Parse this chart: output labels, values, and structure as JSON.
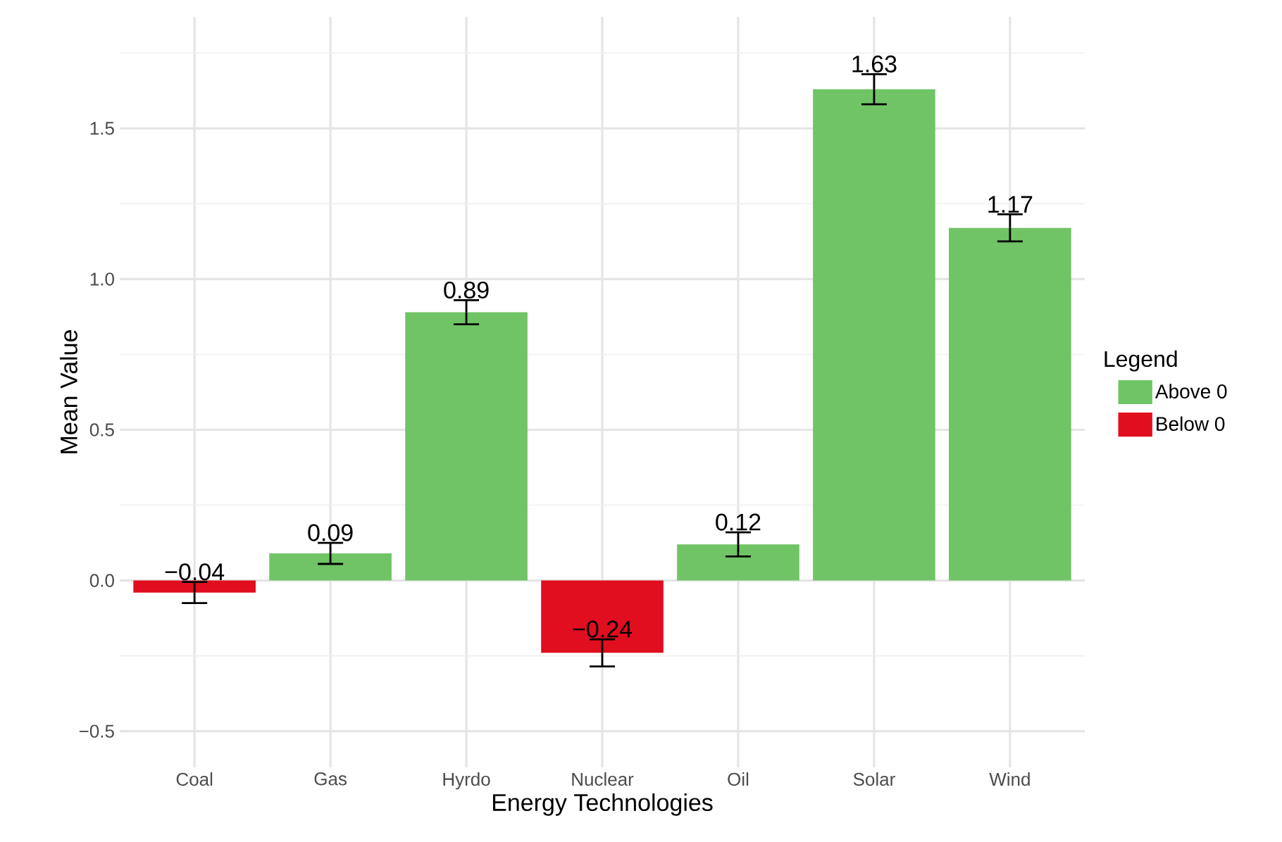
{
  "chart_data": {
    "type": "bar",
    "xlabel": "Energy Technologies",
    "ylabel": "Mean Value",
    "legend_title": "Legend",
    "categories": [
      "Coal",
      "Gas",
      "Hyrdo",
      "Nuclear",
      "Oil",
      "Solar",
      "Wind"
    ],
    "series": [
      {
        "name": "Above 0",
        "color": "#71c466",
        "values": [
          null,
          0.09,
          0.89,
          null,
          0.12,
          1.63,
          1.17
        ],
        "errors": [
          null,
          0.035,
          0.04,
          null,
          0.04,
          0.05,
          0.045
        ],
        "value_labels": [
          null,
          "0.09",
          "0.89",
          null,
          "0.12",
          "1.63",
          "1.17"
        ]
      },
      {
        "name": "Below 0",
        "color": "#e00e1f",
        "values": [
          -0.04,
          null,
          null,
          -0.24,
          null,
          null,
          null
        ],
        "errors": [
          0.035,
          null,
          null,
          0.045,
          null,
          null,
          null
        ],
        "value_labels": [
          "−0.04",
          null,
          null,
          "−0.24",
          null,
          null,
          null
        ]
      }
    ],
    "ylim": [
      -0.62,
      1.87
    ],
    "yticks": [
      {
        "value": -0.5,
        "label": "−0.5"
      },
      {
        "value": -0.25,
        "label": null
      },
      {
        "value": 0,
        "label": "0.0"
      },
      {
        "value": 0.25,
        "label": null
      },
      0.5,
      {
        "value": 0.75,
        "label": null
      },
      {
        "value": 1,
        "label": "1.0"
      },
      {
        "value": 1.25,
        "label": null
      },
      1.5,
      {
        "value": 1.75,
        "label": null
      }
    ],
    "grid": true,
    "legend": "right"
  }
}
